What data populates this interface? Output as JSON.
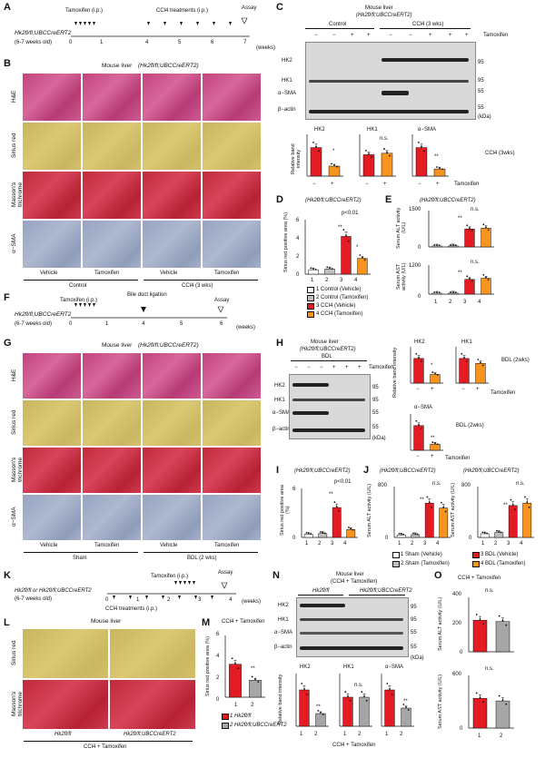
{
  "panels": {
    "A": {
      "letter": "A",
      "genotype": "Hk2fl/fl;UBCCreERT2",
      "age": "(6-7 weeks old)",
      "tamoxifen": "Tamoxifen (i.p.)",
      "ccl4": "CCl4 treatments (i.p.)",
      "assay": "Assay",
      "weeks_label": "(weeks)",
      "ticks": [
        "0",
        "1",
        "4",
        "5",
        "6",
        "7"
      ]
    },
    "B": {
      "letter": "B",
      "title": "Mouse liver",
      "title_geno": "(Hk2fl/fl;UBCCreERT2)",
      "rows": [
        "H&E",
        "Sirius red",
        "Masson's trichrome",
        "α−SMA"
      ],
      "cols": [
        "Vehicle",
        "Tamoxifen",
        "Vehicle",
        "Tamoxifen"
      ],
      "groups": [
        "Control",
        "CCl4 (3 wks)"
      ]
    },
    "C": {
      "letter": "C",
      "title": "Mouse liver",
      "title_geno": "(Hk2fl/fl;UBCCreERT2)",
      "groups": [
        "Control",
        "CCl4 (3 wks)"
      ],
      "tamox_label": "Tamoxifen",
      "lanes": [
        "−",
        "−",
        "+",
        "+",
        "−",
        "−",
        "+",
        "+",
        "+"
      ],
      "bands": [
        "HK2",
        "HK1",
        "α−SMA",
        "β−actin"
      ],
      "kda": [
        "95",
        "95",
        "55",
        "55"
      ],
      "kda_label": "(kDa)",
      "bar_titles": [
        "HK2",
        "HK1",
        "α−SMA"
      ],
      "ylabel": "Relative band intensity",
      "sig": [
        "*",
        "n.s.",
        "**"
      ],
      "cond": "CCl4 (3wks)",
      "x_signs": [
        "−",
        "+"
      ],
      "tamox_axis": "Tamoxifen"
    },
    "D": {
      "letter": "D",
      "geno": "(Hk2fl/fl;UBCCreERT2)",
      "ylabel": "Sirius red positive area (%)",
      "yticks": [
        "0",
        "2",
        "4",
        "6"
      ],
      "x": [
        "1",
        "2",
        "3",
        "4"
      ],
      "sig": [
        "**",
        "*",
        "p<0.01"
      ]
    },
    "E": {
      "letter": "E",
      "geno": "(Hk2fl/fl;UBCCreERT2)",
      "alt_label": "Serum ALT activity (U/L)",
      "ast_label": "Serum AST activity (U/L)",
      "alt_ticks": [
        "0",
        "500",
        "1000",
        "1500"
      ],
      "ast_ticks": [
        "0",
        "300",
        "600",
        "900",
        "1200"
      ],
      "x": [
        "1",
        "2",
        "3",
        "4"
      ],
      "sig": [
        "**",
        "n.s."
      ]
    },
    "legend1": {
      "items": [
        "1  Control (Vehicle)",
        "2  Control (Tamoxifen)",
        "3  CCl4 (Vehicle)",
        "4  CCl4 (Tamoxifen)"
      ]
    },
    "F": {
      "letter": "F",
      "genotype": "Hk2fl/fl;UBCCreERT2",
      "age": "(6-7 weeks old)",
      "tamoxifen": "Tamoxifen (i.p.)",
      "bdl": "Bile duct ligation",
      "assay": "Assay",
      "weeks_label": "(weeks)",
      "ticks": [
        "0",
        "1",
        "4",
        "5",
        "6"
      ]
    },
    "G": {
      "letter": "G",
      "title": "Mouse liver",
      "title_geno": "(Hk2fl/fl;UBCCreERT2)",
      "rows": [
        "H&E",
        "Sirius red",
        "Masson's trichrome",
        "α−SMA"
      ],
      "cols": [
        "Vehicle",
        "Tamoxifen",
        "Vehicle",
        "Tamoxifen"
      ],
      "groups": [
        "Sham",
        "BDL (2 wks)"
      ]
    },
    "H": {
      "letter": "H",
      "title": "Mouse liver",
      "title_geno": "(Hk2fl/fl;UBCCreERT2)",
      "group": "BDL",
      "tamox_label": "Tamoxifen",
      "lanes": [
        "−",
        "−",
        "−",
        "+",
        "+",
        "+"
      ],
      "bands": [
        "HK2",
        "HK1",
        "α−SMA",
        "β−actin"
      ],
      "kda": [
        "95",
        "95",
        "55",
        "55"
      ],
      "kda_label": "(kDa)",
      "bar_titles": [
        "HK2",
        "HK1",
        "α−SMA"
      ],
      "ylabel": "Relative band intensity",
      "sig": [
        "*",
        "**"
      ],
      "cond": "BDL (2wks)",
      "x_signs": [
        "−",
        "+"
      ],
      "tamox_axis": "Tamoxifen"
    },
    "I": {
      "letter": "I",
      "geno": "(Hk2fl/fl;UBCCreERT2)",
      "ylabel": "Sirius red positive area (%)",
      "yticks": [
        "0",
        "2",
        "4",
        "6"
      ],
      "x": [
        "1",
        "2",
        "3",
        "4"
      ],
      "sig": [
        "**",
        "p<0.01"
      ]
    },
    "J": {
      "letter": "J",
      "geno": "(Hk2fl/fl;UBCCreERT2)",
      "alt_label": "Serum ALT activity (U/L)",
      "ast_label": "Serum AST activity (U/L)",
      "alt_ticks": [
        "0",
        "200",
        "400",
        "600",
        "800"
      ],
      "ast_ticks": [
        "0",
        "200",
        "400",
        "600",
        "800"
      ],
      "x": [
        "1",
        "2",
        "3",
        "4"
      ],
      "sig": [
        "**",
        "n.s."
      ]
    },
    "legend2": {
      "items": [
        "1  Sham (Vehicle)",
        "2  Sham (Tamoxifen)",
        "3  BDL (Vehicle)",
        "4  BDL (Tamoxifen)"
      ]
    },
    "K": {
      "letter": "K",
      "genotype": "Hk2fl/fl or Hk2fl/fl;UBCCreERT2",
      "age": "(6-7 weeks old)",
      "tamoxifen": "Tamoxifen (i.p.)",
      "ccl4": "CCl4 treatments (i.p.)",
      "assay": "Assay",
      "weeks_label": "(weeks)",
      "ticks": [
        "0",
        "1",
        "2",
        "3",
        "4"
      ]
    },
    "L": {
      "letter": "L",
      "title": "Mouse liver",
      "rows": [
        "Sirius red",
        "Masson's trichrome"
      ],
      "cols": [
        "Hk2fl/fl",
        "Hk2fl/fl;UBCCreERT2"
      ],
      "group": "CCl4 + Tamoxifen"
    },
    "M": {
      "letter": "M",
      "title": "CCl4 + Tamoxifen",
      "ylabel": "Sirius red positive area (%)",
      "yticks": [
        "0",
        "2",
        "4",
        "6"
      ],
      "x": [
        "1",
        "2"
      ],
      "sig": [
        "**"
      ],
      "legend": [
        "1  Hk2fl/fl",
        "2  Hk2fl/fl;UBCCreERT2"
      ]
    },
    "N": {
      "letter": "N",
      "title": "Mouse liver",
      "title_sub": "(CCl4 + Tamoxifen)",
      "groups": [
        "Hk2fl/fl",
        "Hk2fl/fl;UBCCreERT2"
      ],
      "bands": [
        "HK2",
        "HK1",
        "α−SMA",
        "β−actin"
      ],
      "kda": [
        "95",
        "95",
        "55",
        "55"
      ],
      "kda_label": "(kDa)",
      "bar_titles": [
        "HK2",
        "HK1",
        "α−SMA"
      ],
      "ylabel": "Relative band intensity",
      "sig": [
        "**",
        "n.s.",
        "**"
      ],
      "x": [
        "1",
        "2"
      ],
      "footer": "CCl4 + Tamoxifen"
    },
    "O": {
      "letter": "O",
      "title": "CCl4 + Tamoxifen",
      "alt_label": "Serum ALT activity (U/L)",
      "ast_label": "Serum AST activity (U/L)",
      "alt_ticks": [
        "0",
        "100",
        "200",
        "300",
        "400"
      ],
      "ast_ticks": [
        "0",
        "200",
        "400",
        "600"
      ],
      "x": [
        "1",
        "2"
      ],
      "sig": [
        "n.s."
      ]
    }
  },
  "colors": {
    "ctrl_veh": "#ffffff",
    "ctrl_tam": "#bfbfbf",
    "red": "#e31b23",
    "orange": "#f7941d",
    "grey": "#a6a6a6"
  },
  "chart_data": [
    {
      "type": "bar",
      "panel": "C",
      "title": "HK2",
      "categories": [
        "−",
        "+"
      ],
      "values": [
        1.0,
        0.35
      ],
      "ylabel": "Relative band intensity"
    },
    {
      "type": "bar",
      "panel": "C",
      "title": "HK1",
      "categories": [
        "−",
        "+"
      ],
      "values": [
        0.75,
        0.8
      ]
    },
    {
      "type": "bar",
      "panel": "C",
      "title": "α−SMA",
      "categories": [
        "−",
        "+"
      ],
      "values": [
        1.0,
        0.25
      ]
    },
    {
      "type": "bar",
      "panel": "D",
      "categories": [
        "1",
        "2",
        "3",
        "4"
      ],
      "values": [
        0.5,
        0.6,
        4.3,
        1.8
      ],
      "ylim": [
        0,
        6
      ],
      "ylabel": "Sirius red positive area (%)"
    },
    {
      "type": "bar",
      "panel": "E",
      "categories": [
        "1",
        "2",
        "3",
        "4"
      ],
      "values": [
        40,
        45,
        780,
        820
      ],
      "ylim": [
        0,
        1500
      ],
      "ylabel": "Serum ALT activity (U/L)"
    },
    {
      "type": "bar",
      "panel": "E",
      "categories": [
        "1",
        "2",
        "3",
        "4"
      ],
      "values": [
        40,
        45,
        650,
        700
      ],
      "ylim": [
        0,
        1200
      ],
      "ylabel": "Serum AST activity (U/L)"
    },
    {
      "type": "bar",
      "panel": "H",
      "title": "HK2",
      "categories": [
        "−",
        "+"
      ],
      "values": [
        1.0,
        0.35
      ]
    },
    {
      "type": "bar",
      "panel": "H",
      "title": "HK1",
      "categories": [
        "−",
        "+"
      ],
      "values": [
        1.0,
        0.8
      ]
    },
    {
      "type": "bar",
      "panel": "H",
      "title": "α−SMA",
      "categories": [
        "−",
        "+"
      ],
      "values": [
        1.0,
        0.25
      ]
    },
    {
      "type": "bar",
      "panel": "I",
      "categories": [
        "1",
        "2",
        "3",
        "4"
      ],
      "values": [
        0.4,
        0.5,
        3.8,
        1.0
      ],
      "ylim": [
        0,
        6
      ],
      "ylabel": "Sirius red positive area (%)"
    },
    {
      "type": "bar",
      "panel": "J",
      "categories": [
        "1",
        "2",
        "3",
        "4"
      ],
      "values": [
        40,
        45,
        560,
        480
      ],
      "ylim": [
        0,
        800
      ],
      "ylabel": "Serum ALT activity (U/L)"
    },
    {
      "type": "bar",
      "panel": "J",
      "categories": [
        "1",
        "2",
        "3",
        "4"
      ],
      "values": [
        60,
        80,
        520,
        560
      ],
      "ylim": [
        0,
        800
      ],
      "ylabel": "Serum AST activity (U/L)"
    },
    {
      "type": "bar",
      "panel": "M",
      "categories": [
        "1",
        "2"
      ],
      "values": [
        3.3,
        1.7
      ],
      "ylim": [
        0,
        6
      ],
      "ylabel": "Sirius red positive area (%)"
    },
    {
      "type": "bar",
      "panel": "N",
      "title": "HK2",
      "categories": [
        "1",
        "2"
      ],
      "values": [
        1.0,
        0.35
      ]
    },
    {
      "type": "bar",
      "panel": "N",
      "title": "HK1",
      "categories": [
        "1",
        "2"
      ],
      "values": [
        0.8,
        0.8
      ]
    },
    {
      "type": "bar",
      "panel": "N",
      "title": "α−SMA",
      "categories": [
        "1",
        "2"
      ],
      "values": [
        1.0,
        0.5
      ]
    },
    {
      "type": "bar",
      "panel": "O",
      "categories": [
        "1",
        "2"
      ],
      "values": [
        240,
        230
      ],
      "ylim": [
        0,
        400
      ],
      "ylabel": "Serum ALT activity (U/L)"
    },
    {
      "type": "bar",
      "panel": "O",
      "categories": [
        "1",
        "2"
      ],
      "values": [
        350,
        320
      ],
      "ylim": [
        0,
        600
      ],
      "ylabel": "Serum AST activity (U/L)"
    }
  ]
}
